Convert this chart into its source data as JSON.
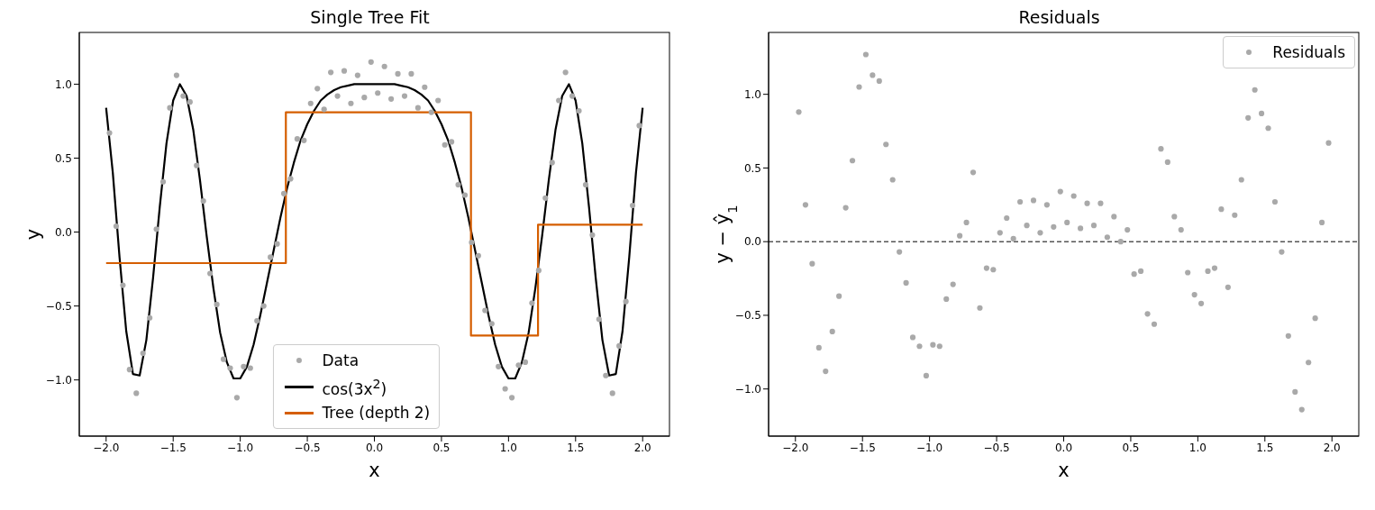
{
  "chart_data": [
    {
      "type": "line",
      "title": "Single Tree Fit",
      "xlabel": "x",
      "ylabel": "y",
      "xlim": [
        -2.2,
        2.2
      ],
      "ylim": [
        -1.38,
        1.35
      ],
      "xticks": [
        {
          "value": -2,
          "label": "−2.0"
        },
        {
          "value": -1.5,
          "label": "−1.5"
        },
        {
          "value": -1,
          "label": "−1.0"
        },
        {
          "value": -0.5,
          "label": "−0.5"
        },
        {
          "value": 0,
          "label": "0.0"
        },
        {
          "value": 0.5,
          "label": "0.5"
        },
        {
          "value": 1,
          "label": "1.0"
        },
        {
          "value": 1.5,
          "label": "1.5"
        },
        {
          "value": 2,
          "label": "2.0"
        }
      ],
      "yticks": [
        {
          "value": -1,
          "label": "−1.0"
        },
        {
          "value": -0.5,
          "label": "−0.5"
        },
        {
          "value": 0,
          "label": "0.0"
        },
        {
          "value": 0.5,
          "label": "0.5"
        },
        {
          "value": 1,
          "label": "1.0"
        }
      ],
      "legend": "bottom",
      "series": [
        {
          "name": "Data",
          "type": "scatter",
          "color": "#a9a9a9",
          "x": [
            -1.975,
            -1.925,
            -1.875,
            -1.825,
            -1.775,
            -1.725,
            -1.675,
            -1.625,
            -1.575,
            -1.525,
            -1.475,
            -1.425,
            -1.375,
            -1.325,
            -1.275,
            -1.225,
            -1.175,
            -1.125,
            -1.075,
            -1.025,
            -0.975,
            -0.925,
            -0.875,
            -0.825,
            -0.775,
            -0.725,
            -0.675,
            -0.625,
            -0.575,
            -0.525,
            -0.475,
            -0.425,
            -0.375,
            -0.325,
            -0.275,
            -0.225,
            -0.175,
            -0.125,
            -0.075,
            -0.025,
            0.025,
            0.075,
            0.125,
            0.175,
            0.225,
            0.275,
            0.325,
            0.375,
            0.425,
            0.475,
            0.525,
            0.575,
            0.625,
            0.675,
            0.725,
            0.775,
            0.825,
            0.875,
            0.925,
            0.975,
            1.025,
            1.075,
            1.125,
            1.175,
            1.225,
            1.275,
            1.325,
            1.375,
            1.425,
            1.475,
            1.525,
            1.575,
            1.625,
            1.675,
            1.725,
            1.775,
            1.825,
            1.875,
            1.925,
            1.975
          ],
          "values": [
            0.67,
            0.04,
            -0.36,
            -0.93,
            -1.09,
            -0.82,
            -0.58,
            0.02,
            0.34,
            0.84,
            1.06,
            0.92,
            0.88,
            0.45,
            0.21,
            -0.28,
            -0.49,
            -0.86,
            -0.92,
            -1.12,
            -0.91,
            -0.92,
            -0.6,
            -0.5,
            -0.17,
            -0.08,
            0.26,
            0.36,
            0.63,
            0.62,
            0.87,
            0.97,
            0.83,
            1.08,
            0.92,
            1.09,
            0.87,
            1.06,
            0.91,
            1.15,
            0.94,
            1.12,
            0.9,
            1.07,
            0.92,
            1.07,
            0.84,
            0.98,
            0.81,
            0.89,
            0.59,
            0.61,
            0.32,
            0.25,
            -0.07,
            -0.16,
            -0.53,
            -0.62,
            -0.91,
            -1.06,
            -1.12,
            -0.9,
            -0.88,
            -0.48,
            -0.26,
            0.23,
            0.47,
            0.89,
            1.08,
            0.92,
            0.82,
            0.32,
            -0.02,
            -0.59,
            -0.97,
            -1.09,
            -0.77,
            -0.47,
            0.18,
            0.72
          ]
        },
        {
          "name": "cos(3x$^{2}$)",
          "type": "line",
          "color": "#000000",
          "x": [
            -2,
            -1.95,
            -1.9,
            -1.85,
            -1.8,
            -1.75,
            -1.7,
            -1.65,
            -1.6,
            -1.55,
            -1.5,
            -1.45,
            -1.4,
            -1.35,
            -1.3,
            -1.25,
            -1.2,
            -1.15,
            -1.1,
            -1.05,
            -1,
            -0.95,
            -0.9,
            -0.85,
            -0.8,
            -0.75,
            -0.7,
            -0.65,
            -0.6,
            -0.55,
            -0.5,
            -0.45,
            -0.4,
            -0.35,
            -0.3,
            -0.25,
            -0.2,
            -0.15,
            -0.1,
            -0.05,
            0,
            0.05,
            0.1,
            0.15,
            0.2,
            0.25,
            0.3,
            0.35,
            0.4,
            0.45,
            0.5,
            0.55,
            0.6,
            0.65,
            0.7,
            0.75,
            0.8,
            0.85,
            0.9,
            0.95,
            1,
            1.05,
            1.1,
            1.15,
            1.2,
            1.25,
            1.3,
            1.35,
            1.4,
            1.45,
            1.5,
            1.55,
            1.6,
            1.65,
            1.7,
            1.75,
            1.8,
            1.85,
            1.9,
            1.95,
            2
          ],
          "values": [
            0.84,
            0.4,
            -0.17,
            -0.67,
            -0.96,
            -0.97,
            -0.73,
            -0.31,
            0.17,
            0.6,
            0.89,
            1,
            0.92,
            0.69,
            0.35,
            -0.03,
            -0.38,
            -0.68,
            -0.88,
            -0.99,
            -0.99,
            -0.91,
            -0.76,
            -0.56,
            -0.34,
            -0.12,
            0.1,
            0.3,
            0.47,
            0.62,
            0.73,
            0.82,
            0.89,
            0.93,
            0.96,
            0.98,
            0.99,
            1,
            1,
            1,
            1,
            1,
            1,
            1,
            0.99,
            0.98,
            0.96,
            0.93,
            0.89,
            0.82,
            0.73,
            0.62,
            0.47,
            0.3,
            0.1,
            -0.12,
            -0.34,
            -0.56,
            -0.76,
            -0.91,
            -0.99,
            -0.99,
            -0.88,
            -0.68,
            -0.38,
            -0.03,
            0.35,
            0.69,
            0.92,
            1,
            0.89,
            0.6,
            0.17,
            -0.31,
            -0.73,
            -0.97,
            -0.96,
            -0.67,
            -0.17,
            0.4,
            0.84
          ]
        },
        {
          "name": "Tree (depth 2)",
          "type": "step",
          "color": "#d55e00",
          "x": [
            -2,
            -0.66,
            0.72,
            1.22,
            2
          ],
          "values": [
            -0.21,
            0.81,
            -0.7,
            0.05,
            0.05
          ]
        }
      ]
    },
    {
      "type": "scatter",
      "title": "Residuals",
      "xlabel": "x",
      "ylabel": "y − ŷ$_{1}$",
      "xlim": [
        -2.2,
        2.2
      ],
      "ylim": [
        -1.32,
        1.42
      ],
      "xticks": [
        {
          "value": -2,
          "label": "−2.0"
        },
        {
          "value": -1.5,
          "label": "−1.5"
        },
        {
          "value": -1,
          "label": "−1.0"
        },
        {
          "value": -0.5,
          "label": "−0.5"
        },
        {
          "value": 0,
          "label": "0.0"
        },
        {
          "value": 0.5,
          "label": "0.5"
        },
        {
          "value": 1,
          "label": "1.0"
        },
        {
          "value": 1.5,
          "label": "1.5"
        },
        {
          "value": 2,
          "label": "2.0"
        }
      ],
      "yticks": [
        {
          "value": -1,
          "label": "−1.0"
        },
        {
          "value": -0.5,
          "label": "−0.5"
        },
        {
          "value": 0,
          "label": "0.0"
        },
        {
          "value": 0.5,
          "label": "0.5"
        },
        {
          "value": 1,
          "label": "1.0"
        }
      ],
      "legend": "top right",
      "ref_lines": [
        {
          "axis": "y",
          "value": 0,
          "color": "#000000",
          "line_style": "dashed"
        }
      ],
      "series": [
        {
          "name": "Residuals",
          "color": "#a9a9a9",
          "x": [
            -1.975,
            -1.925,
            -1.875,
            -1.825,
            -1.775,
            -1.725,
            -1.675,
            -1.625,
            -1.575,
            -1.525,
            -1.475,
            -1.425,
            -1.375,
            -1.325,
            -1.275,
            -1.225,
            -1.175,
            -1.125,
            -1.075,
            -1.025,
            -0.975,
            -0.925,
            -0.875,
            -0.825,
            -0.775,
            -0.725,
            -0.675,
            -0.625,
            -0.575,
            -0.525,
            -0.475,
            -0.425,
            -0.375,
            -0.325,
            -0.275,
            -0.225,
            -0.175,
            -0.125,
            -0.075,
            -0.025,
            0.025,
            0.075,
            0.125,
            0.175,
            0.225,
            0.275,
            0.325,
            0.375,
            0.425,
            0.475,
            0.525,
            0.575,
            0.625,
            0.675,
            0.725,
            0.775,
            0.825,
            0.875,
            0.925,
            0.975,
            1.025,
            1.075,
            1.125,
            1.175,
            1.225,
            1.275,
            1.325,
            1.375,
            1.425,
            1.475,
            1.525,
            1.575,
            1.625,
            1.675,
            1.725,
            1.775,
            1.825,
            1.875,
            1.925,
            1.975
          ],
          "values": [
            0.88,
            0.25,
            -0.15,
            -0.72,
            -0.88,
            -0.61,
            -0.37,
            0.23,
            0.55,
            1.05,
            1.27,
            1.13,
            1.09,
            0.66,
            0.42,
            -0.07,
            -0.28,
            -0.65,
            -0.71,
            -0.91,
            -0.7,
            -0.71,
            -0.39,
            -0.29,
            0.04,
            0.13,
            0.47,
            -0.45,
            -0.18,
            -0.19,
            0.06,
            0.16,
            0.02,
            0.27,
            0.11,
            0.28,
            0.06,
            0.25,
            0.1,
            0.34,
            0.13,
            0.31,
            0.09,
            0.26,
            0.11,
            0.26,
            0.03,
            0.17,
            0,
            0.08,
            -0.22,
            -0.2,
            -0.49,
            -0.56,
            0.63,
            0.54,
            0.17,
            0.08,
            -0.21,
            -0.36,
            -0.42,
            -0.2,
            -0.18,
            0.22,
            -0.31,
            0.18,
            0.42,
            0.84,
            1.03,
            0.87,
            0.77,
            0.27,
            -0.07,
            -0.64,
            -1.02,
            -1.14,
            -0.82,
            -0.52,
            0.13,
            0.67
          ]
        }
      ]
    }
  ]
}
